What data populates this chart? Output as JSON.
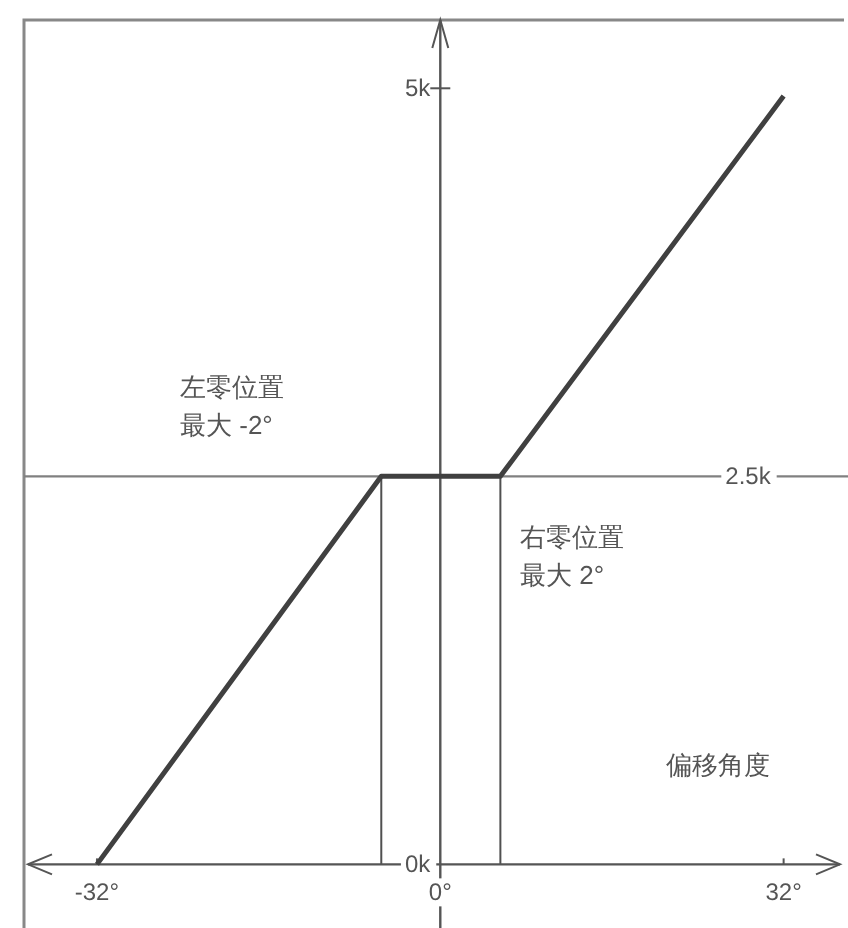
{
  "chart_data": {
    "type": "line",
    "xlabel": "偏移角度",
    "x": [
      -32,
      -5.5,
      5.6,
      32
    ],
    "values": [
      0,
      2500,
      2500,
      4950
    ],
    "color": "#404040",
    "marker": "none",
    "line_style": "solid",
    "xlim": [
      -38.8,
      38
    ],
    "ylim": [
      -410,
      5440
    ],
    "xticks": [
      {
        "value": -32,
        "label": "-32°"
      },
      {
        "value": 0,
        "label": "0°"
      },
      {
        "value": 32,
        "label": "32°"
      }
    ],
    "yticks": [
      {
        "value": 0,
        "label": "0k"
      },
      {
        "value": 5000,
        "label": "5k"
      }
    ],
    "ref_lines": [
      {
        "axis": "y",
        "value": 2500,
        "label": "2.5k",
        "color": "#808080"
      },
      {
        "axis": "x",
        "value": -5.5,
        "color": "#505050"
      },
      {
        "axis": "x",
        "value": 5.6,
        "color": "#505050"
      }
    ],
    "annotations": [
      "左零位置最大 -2°",
      "右零位置最大 2°"
    ]
  }
}
